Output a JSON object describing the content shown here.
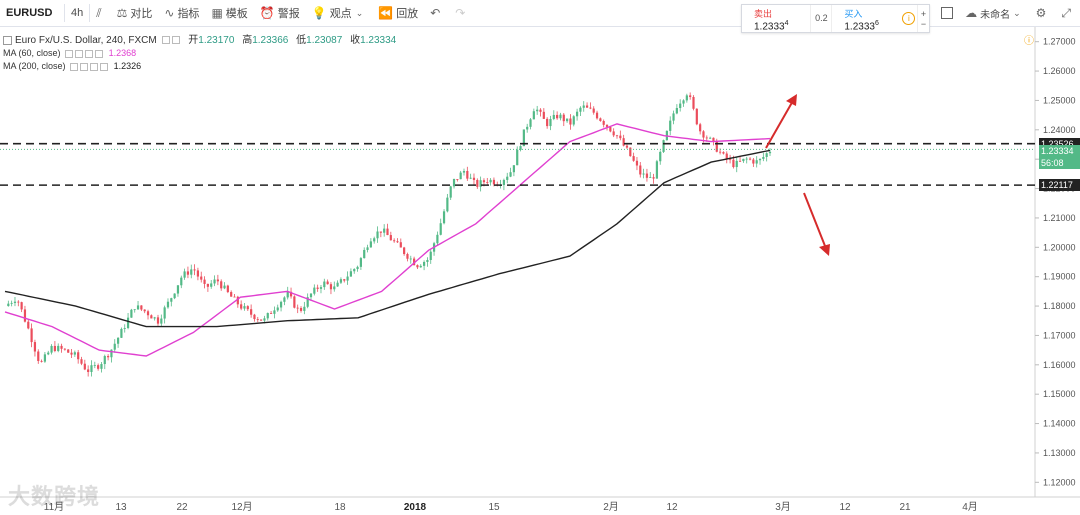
{
  "toolbar": {
    "symbol": "EURUSD",
    "interval": "4h",
    "compare": "对比",
    "indicators": "指标",
    "templates": "模板",
    "alert": "警报",
    "ideas": "观点",
    "replay": "回放",
    "undo_icon": "undo-icon",
    "redo_icon": "redo-icon",
    "unnamed": "未命名"
  },
  "trade": {
    "sell_label": "卖出",
    "sell_price": "1.2333",
    "sell_sup": "4",
    "spread": "0.2",
    "buy_label": "买入",
    "buy_price": "1.2333",
    "buy_sup": "6"
  },
  "legend": {
    "title": "Euro Fx/U.S. Dollar, 240, FXCM",
    "open_label": "开",
    "open": "1.23170",
    "high_label": "高",
    "high": "1.23366",
    "low_label": "低",
    "low": "1.23087",
    "close_label": "收",
    "close": "1.23334",
    "ma60_label": "MA (60, close)",
    "ma60_value": "1.2368",
    "ma200_label": "MA (200, close)",
    "ma200_value": "1.2326"
  },
  "colors": {
    "up": "#53b987",
    "down": "#eb4d5c",
    "ma60": "#e040d0",
    "ma200": "#222222",
    "arrow": "#d62b2b"
  },
  "price_axis": {
    "ticks": [
      "1.27000",
      "1.26000",
      "1.25000",
      "1.24000",
      "1.23000",
      "1.22000",
      "1.21000",
      "1.20000",
      "1.19000",
      "1.18000",
      "1.17000",
      "1.16000",
      "1.15000",
      "1.14000",
      "1.13000",
      "1.12000"
    ],
    "line_upper": "1.23526",
    "current_price": "1.23334",
    "countdown": "56:08",
    "line_lower": "1.22117"
  },
  "time_axis": [
    "11月",
    "13",
    "22",
    "12月",
    "18",
    "2018",
    "15",
    "2月",
    "12",
    "3月",
    "12",
    "21",
    "4月"
  ],
  "watermark": "大数跨境",
  "chart_data": {
    "type": "candlestick",
    "title": "Euro Fx/U.S. Dollar, 240, FXCM",
    "ylim": [
      1.115,
      1.275
    ],
    "y_ticks": [
      1.12,
      1.13,
      1.14,
      1.15,
      1.16,
      1.17,
      1.18,
      1.19,
      1.2,
      1.21,
      1.22,
      1.23,
      1.24,
      1.25,
      1.26,
      1.27
    ],
    "x_labels": [
      "11月",
      "13",
      "22",
      "12月",
      "18",
      "2018",
      "15",
      "2月",
      "12",
      "3月",
      "12",
      "21",
      "4月"
    ],
    "price_path": [
      [
        0,
        1.18
      ],
      [
        1,
        1.183
      ],
      [
        2,
        1.172
      ],
      [
        3,
        1.16
      ],
      [
        4,
        1.166
      ],
      [
        5,
        1.165
      ],
      [
        6,
        1.163
      ],
      [
        7,
        1.158
      ],
      [
        8,
        1.16
      ],
      [
        9,
        1.165
      ],
      [
        10,
        1.172
      ],
      [
        11,
        1.18
      ],
      [
        12,
        1.178
      ],
      [
        13,
        1.175
      ],
      [
        14,
        1.182
      ],
      [
        15,
        1.19
      ],
      [
        16,
        1.193
      ],
      [
        17,
        1.186
      ],
      [
        18,
        1.189
      ],
      [
        19,
        1.184
      ],
      [
        20,
        1.18
      ],
      [
        21,
        1.177
      ],
      [
        22,
        1.175
      ],
      [
        23,
        1.18
      ],
      [
        24,
        1.184
      ],
      [
        25,
        1.178
      ],
      [
        26,
        1.184
      ],
      [
        27,
        1.188
      ],
      [
        28,
        1.186
      ],
      [
        29,
        1.19
      ],
      [
        30,
        1.194
      ],
      [
        31,
        1.203
      ],
      [
        32,
        1.206
      ],
      [
        33,
        1.202
      ],
      [
        34,
        1.198
      ],
      [
        35,
        1.194
      ],
      [
        36,
        1.196
      ],
      [
        37,
        1.208
      ],
      [
        38,
        1.222
      ],
      [
        39,
        1.226
      ],
      [
        40,
        1.221
      ],
      [
        41,
        1.223
      ],
      [
        42,
        1.222
      ],
      [
        43,
        1.226
      ],
      [
        44,
        1.238
      ],
      [
        45,
        1.248
      ],
      [
        46,
        1.242
      ],
      [
        47,
        1.245
      ],
      [
        48,
        1.242
      ],
      [
        49,
        1.248
      ],
      [
        50,
        1.246
      ],
      [
        51,
        1.242
      ],
      [
        52,
        1.238
      ],
      [
        53,
        1.232
      ],
      [
        54,
        1.225
      ],
      [
        55,
        1.223
      ],
      [
        56,
        1.236
      ],
      [
        57,
        1.248
      ],
      [
        58,
        1.253
      ],
      [
        59,
        1.24
      ],
      [
        60,
        1.236
      ],
      [
        61,
        1.231
      ],
      [
        62,
        1.228
      ],
      [
        63,
        1.23
      ],
      [
        64,
        1.229
      ],
      [
        65,
        1.233
      ]
    ],
    "ma60_path": [
      [
        0,
        1.178
      ],
      [
        4,
        1.173
      ],
      [
        8,
        1.165
      ],
      [
        12,
        1.163
      ],
      [
        16,
        1.171
      ],
      [
        20,
        1.183
      ],
      [
        24,
        1.185
      ],
      [
        28,
        1.179
      ],
      [
        32,
        1.185
      ],
      [
        36,
        1.199
      ],
      [
        40,
        1.208
      ],
      [
        44,
        1.222
      ],
      [
        48,
        1.236
      ],
      [
        52,
        1.242
      ],
      [
        56,
        1.238
      ],
      [
        60,
        1.236
      ],
      [
        65,
        1.237
      ]
    ],
    "ma200_path": [
      [
        0,
        1.185
      ],
      [
        6,
        1.18
      ],
      [
        12,
        1.173
      ],
      [
        18,
        1.173
      ],
      [
        24,
        1.175
      ],
      [
        30,
        1.176
      ],
      [
        36,
        1.184
      ],
      [
        42,
        1.191
      ],
      [
        48,
        1.197
      ],
      [
        52,
        1.208
      ],
      [
        56,
        1.222
      ],
      [
        60,
        1.229
      ],
      [
        65,
        1.233
      ]
    ],
    "annotations": {
      "horizontal_lines": [
        1.23526,
        1.22117
      ],
      "arrows": [
        "up",
        "down"
      ]
    }
  }
}
